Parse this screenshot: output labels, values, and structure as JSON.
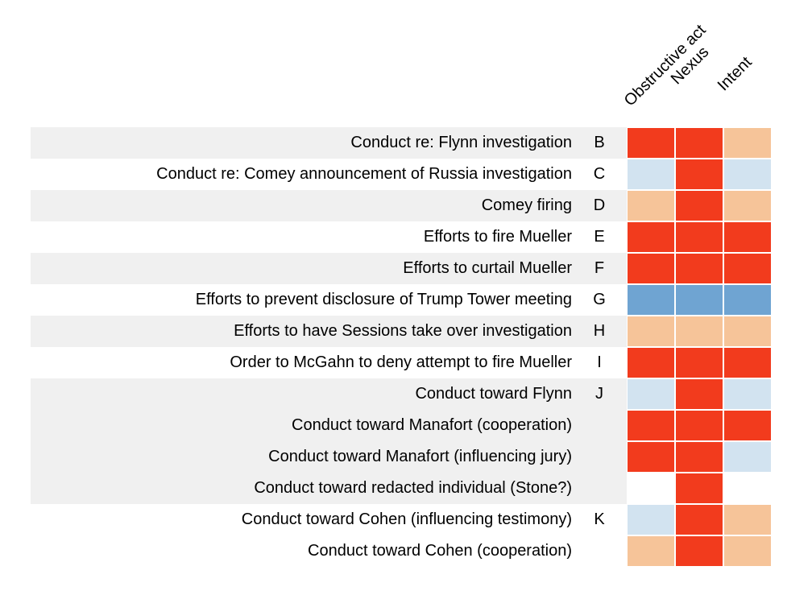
{
  "chart_data": {
    "type": "heatmap",
    "columns": [
      "Obstructive act",
      "Nexus",
      "Intent"
    ],
    "rows": [
      {
        "label": "Conduct re: Flynn investigation",
        "letter": "B",
        "shaded": true,
        "cells": [
          "red",
          "red",
          "light_orange"
        ]
      },
      {
        "label": "Conduct re: Comey announcement of Russia investigation",
        "letter": "C",
        "shaded": false,
        "cells": [
          "light_blue",
          "red",
          "light_blue"
        ]
      },
      {
        "label": "Comey firing",
        "letter": "D",
        "shaded": true,
        "cells": [
          "light_orange",
          "red",
          "light_orange"
        ]
      },
      {
        "label": "Efforts to fire Mueller",
        "letter": "E",
        "shaded": false,
        "cells": [
          "red",
          "red",
          "red"
        ]
      },
      {
        "label": "Efforts to curtail Mueller",
        "letter": "F",
        "shaded": true,
        "cells": [
          "red",
          "red",
          "red"
        ]
      },
      {
        "label": "Efforts to prevent disclosure of Trump Tower meeting",
        "letter": "G",
        "shaded": false,
        "cells": [
          "blue",
          "blue",
          "blue"
        ]
      },
      {
        "label": "Efforts to have Sessions take over investigation",
        "letter": "H",
        "shaded": true,
        "cells": [
          "light_orange",
          "light_orange",
          "light_orange"
        ]
      },
      {
        "label": "Order to McGahn to deny attempt to fire Mueller",
        "letter": "I",
        "shaded": false,
        "cells": [
          "red",
          "red",
          "red"
        ]
      },
      {
        "label": "Conduct toward Flynn",
        "letter": "J",
        "shaded": true,
        "cells": [
          "light_blue",
          "red",
          "light_blue"
        ]
      },
      {
        "label": "Conduct toward Manafort (cooperation)",
        "letter": "",
        "shaded": true,
        "cells": [
          "red",
          "red",
          "red"
        ]
      },
      {
        "label": "Conduct toward Manafort (influencing jury)",
        "letter": "",
        "shaded": true,
        "cells": [
          "red",
          "red",
          "light_blue"
        ]
      },
      {
        "label": "Conduct toward redacted individual (Stone?)",
        "letter": "",
        "shaded": true,
        "cells": [
          "white",
          "red",
          "white"
        ]
      },
      {
        "label": "Conduct toward Cohen (influencing testimony)",
        "letter": "K",
        "shaded": false,
        "cells": [
          "light_blue",
          "red",
          "light_orange"
        ]
      },
      {
        "label": "Conduct toward Cohen (cooperation)",
        "letter": "",
        "shaded": false,
        "cells": [
          "light_orange",
          "red",
          "light_orange"
        ]
      }
    ],
    "color_map": {
      "red": "#f23b1d",
      "light_orange": "#f6c499",
      "light_blue": "#d2e3f0",
      "blue": "#6fa4d2",
      "white": "#ffffff"
    },
    "row_band_color": "#f0f0f0"
  }
}
